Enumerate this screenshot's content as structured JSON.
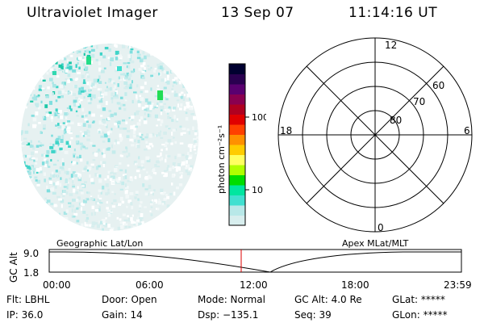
{
  "header": {
    "title": "Ultraviolet Imager",
    "date": "13 Sep 07",
    "time": "11:14:16 UT"
  },
  "colorbar": {
    "label": "photon cm⁻²s⁻¹",
    "ticks": [
      "100",
      "10"
    ],
    "colors": [
      "#d8eeee",
      "#b8e8e8",
      "#40e0d0",
      "#00e6a0",
      "#00dd00",
      "#b0ff00",
      "#ffff60",
      "#ffcc00",
      "#ff9000",
      "#ff4000",
      "#e00000",
      "#b00020",
      "#8a0050",
      "#5a0070",
      "#2a0050",
      "#000030"
    ]
  },
  "polar_grid": {
    "lat_labels": [
      "80",
      "70",
      "60"
    ],
    "mlt_labels": {
      "top": "12",
      "left": "18",
      "right": "6",
      "bottom": "0"
    }
  },
  "timeline": {
    "left_title": "Geographic Lat/Lon",
    "right_title": "Apex MLat/MLT",
    "axis_label": "GC Alt",
    "y_labels": [
      "9.0",
      "1.8"
    ],
    "x_labels": [
      "00:00",
      "06:00",
      "12:00",
      "18:00",
      "23:59"
    ],
    "current_time_marker_color": "#dd0000"
  },
  "status": {
    "row1": [
      "Flt: LBHL",
      "Door: Open",
      "Mode: Normal",
      "GC Alt: 4.0 Re",
      "GLat: *****"
    ],
    "row2": [
      "IP: 36.0",
      "Gain: 14",
      "Dsp: −135.1",
      "Seq: 39",
      "GLon: *****"
    ]
  }
}
